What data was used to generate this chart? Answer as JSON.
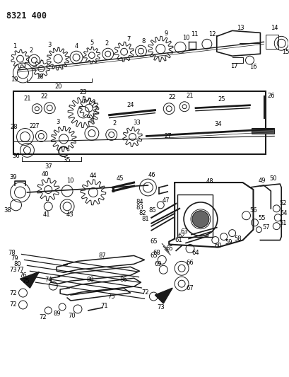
{
  "title": "8321 400",
  "bg_color": "#ffffff",
  "line_color": "#1a1a1a",
  "title_fontsize": 8.5,
  "label_fontsize": 6.0,
  "fig_width": 4.1,
  "fig_height": 5.33,
  "dpi": 100
}
